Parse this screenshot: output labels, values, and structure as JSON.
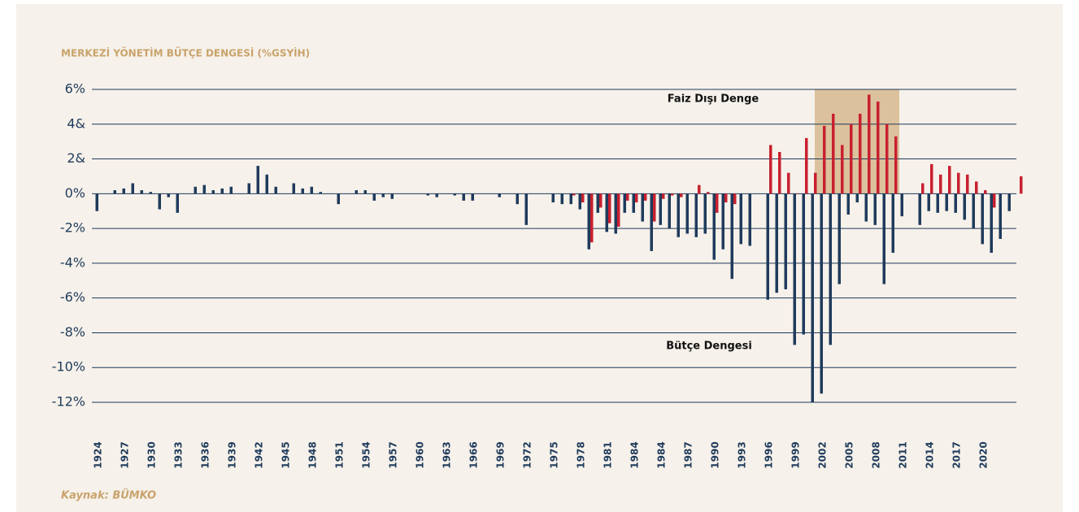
{
  "chart_data": {
    "type": "bar",
    "title": "MERKEZİ YÖNETİM BÜTÇE DENGESİ (%GSYİH)",
    "source": "Kaynak:  BÜMKO",
    "categories": [
      "1924",
      null,
      null,
      "1927",
      null,
      null,
      "1930",
      null,
      null,
      "1933",
      null,
      null,
      "1936",
      null,
      null,
      "1939",
      null,
      null,
      "1942",
      null,
      null,
      "1945",
      null,
      null,
      "1948",
      null,
      null,
      "1951",
      null,
      null,
      "1954",
      null,
      null,
      "1957",
      null,
      null,
      "1960",
      null,
      null,
      "1963",
      null,
      null,
      "1966",
      null,
      null,
      "1969",
      null,
      null,
      "1972",
      null,
      null,
      "1975",
      null,
      null,
      "1978",
      null,
      null,
      "1981",
      null,
      null,
      "1984",
      null,
      null,
      "1984",
      null,
      null,
      "1987",
      null,
      null,
      "1990",
      null,
      null,
      "1993",
      null,
      null,
      "1996",
      null,
      null,
      "1999",
      null,
      null,
      "2002",
      null,
      null,
      "2005",
      null,
      null,
      "2008",
      null,
      null,
      "2011",
      null,
      null,
      "2014",
      null,
      null,
      "2017",
      null,
      null,
      "2020",
      null,
      null,
      null,
      null
    ],
    "series": [
      {
        "name": "Bütçe Dengesi",
        "color": "#1f3b5c",
        "values": [
          -1.0,
          null,
          0.2,
          0.3,
          0.6,
          0.2,
          0.1,
          -0.9,
          -0.2,
          -1.1,
          null,
          0.4,
          0.5,
          0.2,
          0.3,
          0.4,
          null,
          0.6,
          1.6,
          1.1,
          0.4,
          null,
          0.6,
          0.3,
          0.4,
          0.1,
          null,
          -0.6,
          null,
          0.2,
          0.2,
          -0.4,
          -0.2,
          -0.3,
          null,
          null,
          null,
          -0.1,
          -0.2,
          null,
          -0.1,
          -0.4,
          -0.4,
          null,
          null,
          -0.2,
          null,
          -0.6,
          -1.8,
          null,
          null,
          -0.5,
          -0.6,
          -0.6,
          -0.9,
          -3.2,
          -1.1,
          -2.2,
          -2.3,
          -1.1,
          -1.1,
          -1.6,
          -3.3,
          -1.8,
          -2.0,
          -2.5,
          -2.3,
          -2.5,
          -2.3,
          -3.8,
          -3.2,
          -4.9,
          -2.9,
          -3.0,
          null,
          -6.1,
          -5.7,
          -5.5,
          -8.7,
          -8.1,
          -12.0,
          -11.5,
          -8.7,
          -5.2,
          -1.2,
          -0.5,
          -1.6,
          -1.8,
          -5.2,
          -3.4,
          -1.3,
          null,
          -1.8,
          -1.0,
          -1.1,
          -1.0,
          -1.1,
          -1.5,
          -2.0,
          -2.9,
          -3.4,
          -2.6,
          -1.0,
          null
        ]
      },
      {
        "name": "Faiz Dışı Denge",
        "color": "#c8202f",
        "values": [
          null,
          null,
          null,
          null,
          null,
          null,
          null,
          null,
          null,
          null,
          null,
          null,
          null,
          null,
          null,
          null,
          null,
          null,
          null,
          null,
          null,
          null,
          null,
          null,
          null,
          null,
          null,
          null,
          null,
          null,
          null,
          null,
          null,
          null,
          null,
          null,
          null,
          null,
          null,
          null,
          null,
          null,
          null,
          null,
          null,
          null,
          null,
          null,
          null,
          null,
          null,
          null,
          null,
          -0.1,
          -0.5,
          -2.8,
          -0.8,
          -1.7,
          -1.9,
          -0.4,
          -0.5,
          -0.4,
          -1.6,
          -0.3,
          -0.1,
          -0.2,
          null,
          0.5,
          0.1,
          -1.1,
          -0.5,
          -0.6,
          null,
          null,
          null,
          2.8,
          2.4,
          1.2,
          0,
          3.2,
          1.2,
          3.9,
          4.6,
          2.8,
          4.0,
          4.6,
          5.7,
          5.3,
          4.0,
          3.3,
          null,
          null,
          0.6,
          1.7,
          1.1,
          1.6,
          1.2,
          1.1,
          0.7,
          0.2,
          -0.8,
          null,
          null,
          1.0
        ]
      }
    ],
    "ylim": [
      -12,
      6
    ],
    "yticks": [
      {
        "value": 6,
        "label": "6%"
      },
      {
        "value": 4,
        "label": "4&"
      },
      {
        "value": 2,
        "label": "2&"
      },
      {
        "value": 0,
        "label": "0%"
      },
      {
        "value": -2,
        "label": "-2%"
      },
      {
        "value": -4,
        "label": "-4%"
      },
      {
        "value": -6,
        "label": "-6%"
      },
      {
        "value": -8,
        "label": "-8%"
      },
      {
        "value": -10,
        "label": "-10%"
      },
      {
        "value": -12,
        "label": "-12%"
      }
    ],
    "grid": true
  }
}
